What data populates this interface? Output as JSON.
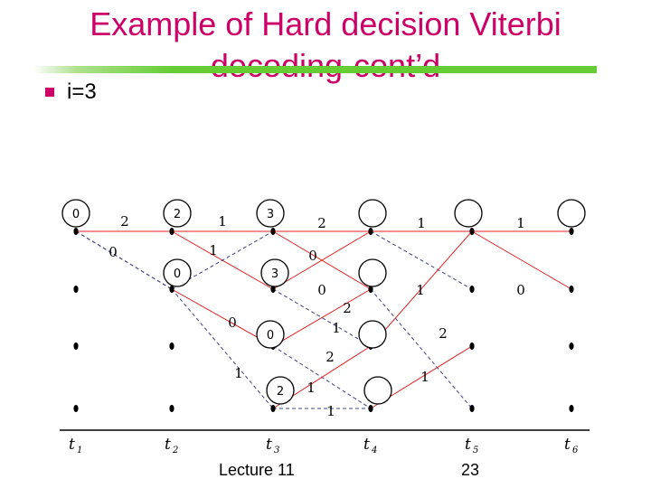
{
  "slide": {
    "title_line1": "Example of Hard decision Viterbi",
    "title_line2": "decoding-cont’d",
    "bullet": "i=3",
    "footer_left": "Lecture 11",
    "page_number": "23"
  },
  "colors": {
    "title": "#cc0066",
    "rule": "#66cc33",
    "survivor_branch": "#e02020",
    "dashed_branch": "#404080"
  },
  "trellis": {
    "time_labels": [
      "t1",
      "t2",
      "t3",
      "t4",
      "t5",
      "t6"
    ],
    "state_metrics": [
      {
        "time": 0,
        "state": 0,
        "metric": "0"
      },
      {
        "time": 1,
        "state": 0,
        "metric": "2"
      },
      {
        "time": 1,
        "state": 1,
        "metric": "0"
      },
      {
        "time": 2,
        "state": 0,
        "metric": "3"
      },
      {
        "time": 2,
        "state": 1,
        "metric": "3"
      },
      {
        "time": 2,
        "state": 2,
        "metric": "0"
      },
      {
        "time": 2,
        "state": 3,
        "metric": "2"
      },
      {
        "time": 3,
        "state": 0,
        "metric": ""
      },
      {
        "time": 3,
        "state": 1,
        "metric": ""
      },
      {
        "time": 3,
        "state": 2,
        "metric": ""
      },
      {
        "time": 3,
        "state": 3,
        "metric": ""
      },
      {
        "time": 4,
        "state": 0,
        "metric": ""
      },
      {
        "time": 5,
        "state": 0,
        "metric": ""
      }
    ],
    "branch_labels": [
      "2",
      "0",
      "1",
      "1",
      "2",
      "0",
      "1",
      "1",
      "0",
      "0",
      "2",
      "1",
      "1",
      "0",
      "2",
      "1",
      "2",
      "1",
      "1"
    ]
  }
}
